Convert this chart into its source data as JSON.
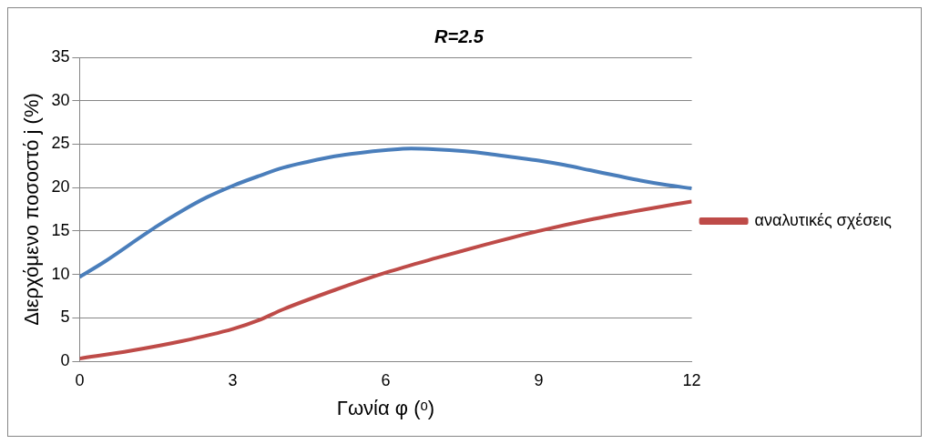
{
  "chart_data": {
    "type": "line",
    "title": "R=2.5",
    "xlabel": "Γωνία φ (ᵒ)",
    "ylabel": "Διερχόμενο ποσοστό j (%)",
    "xlim": [
      0,
      12
    ],
    "xticks": [
      0,
      3,
      6,
      9,
      12
    ],
    "ylim": [
      0,
      35
    ],
    "yticks": [
      0,
      5,
      10,
      15,
      20,
      25,
      30,
      35
    ],
    "grid": "y",
    "legend": "right",
    "marker": "none",
    "line_style": "solid",
    "series": [
      {
        "color": "#4a7ebb",
        "x": [
          0,
          0.5,
          1,
          1.5,
          2,
          2.5,
          3,
          3.5,
          4,
          4.5,
          5,
          5.5,
          6,
          6.5,
          7,
          7.5,
          8,
          8.5,
          9,
          9.5,
          10,
          10.5,
          11,
          11.5,
          12
        ],
        "values": [
          9.7,
          11.5,
          13.5,
          15.5,
          17.3,
          18.9,
          20.2,
          21.3,
          22.3,
          23,
          23.6,
          24,
          24.3,
          24.5,
          24.4,
          24.2,
          23.9,
          23.5,
          23.1,
          22.6,
          22,
          21.4,
          20.8,
          20.3,
          19.9
        ]
      },
      {
        "name": "αναλυτικές σχέσεις",
        "color": "#be4b48",
        "x": [
          0,
          1,
          2,
          3,
          3.5,
          4,
          5,
          6,
          7,
          8,
          9,
          10,
          11,
          12
        ],
        "values": [
          0.3,
          1.2,
          2.3,
          3.7,
          4.7,
          6,
          8.2,
          10.2,
          11.9,
          13.5,
          15,
          16.3,
          17.4,
          18.4
        ]
      }
    ]
  }
}
